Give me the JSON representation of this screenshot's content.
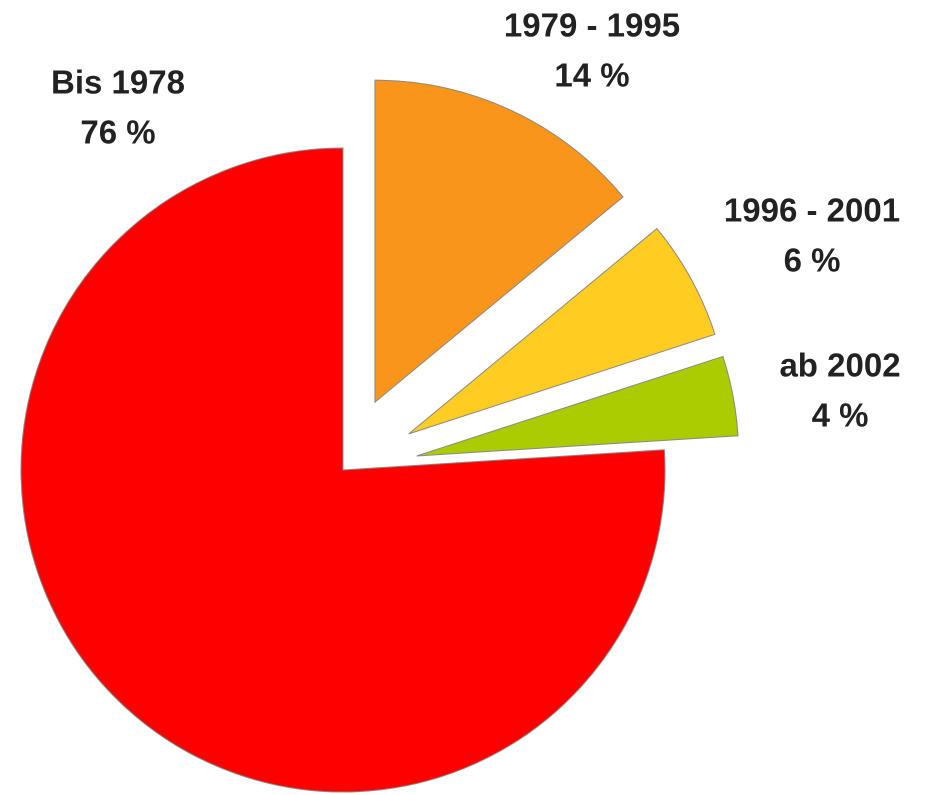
{
  "chart_data": {
    "type": "pie",
    "categories": [
      "Bis 1978",
      "1979 - 1995",
      "1996 - 2001",
      "ab 2002"
    ],
    "values": [
      76,
      14,
      6,
      4
    ],
    "value_labels": [
      "76 %",
      "14 %",
      "6 %",
      "4 %"
    ],
    "colors": [
      "#ff0000",
      "#f9951b",
      "#ffcc22",
      "#aacc00"
    ]
  }
}
